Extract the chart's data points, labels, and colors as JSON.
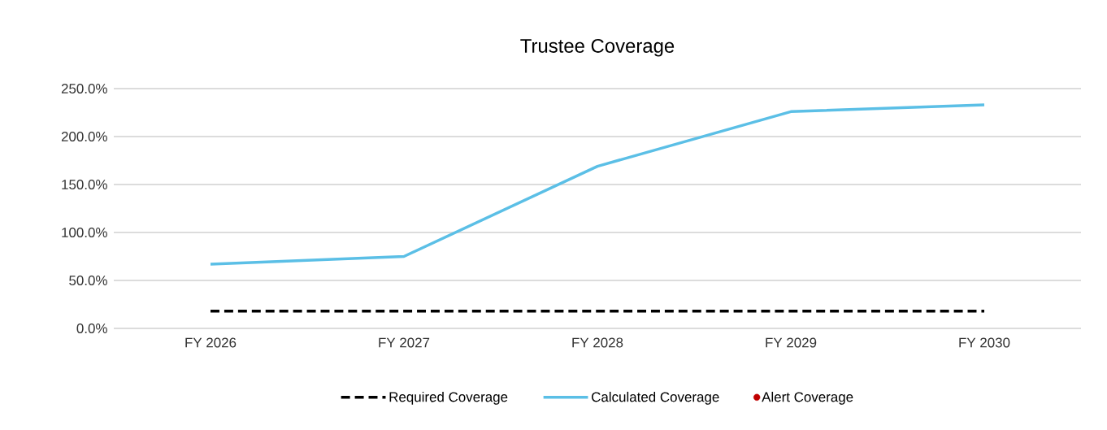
{
  "chart_data": {
    "type": "line",
    "title": "Trustee Coverage",
    "categories": [
      "FY 2026",
      "FY 2027",
      "FY 2028",
      "FY 2029",
      "FY 2030"
    ],
    "series": [
      {
        "name": "Required Coverage",
        "color": "#000000",
        "line_style": "dashed",
        "marker": "none",
        "values": [
          18,
          18,
          18,
          18,
          18
        ]
      },
      {
        "name": "Calculated Coverage",
        "color": "#5bbfe6",
        "line_style": "solid",
        "marker": "none",
        "values": [
          67,
          75,
          169,
          226,
          233
        ]
      },
      {
        "name": "Alert Coverage",
        "color": "#c00000",
        "type": "scatter",
        "marker": "circle",
        "values": [
          null,
          null,
          null,
          null,
          null
        ]
      }
    ],
    "ylim": [
      0,
      250
    ],
    "yticks": [
      {
        "value": 0,
        "label": "0.0%"
      },
      {
        "value": 50,
        "label": "50.0%"
      },
      {
        "value": 100,
        "label": "100.0%"
      },
      {
        "value": 150,
        "label": "150.0%"
      },
      {
        "value": 200,
        "label": "200.0%"
      },
      {
        "value": 250,
        "label": "250.0%"
      }
    ],
    "grid": "y",
    "legend": "bottom"
  }
}
